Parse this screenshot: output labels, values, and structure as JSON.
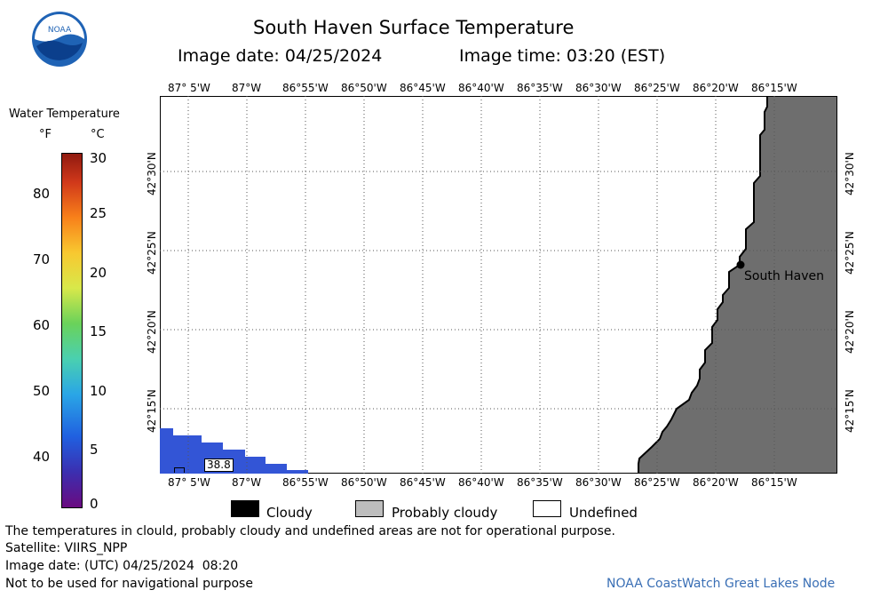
{
  "header": {
    "title": "South Haven Surface Temperature",
    "image_date": "Image date: 04/25/2024",
    "image_time": "Image time: 03:20 (EST)",
    "logo_text": "NOAA"
  },
  "colorbar": {
    "title": "Water Temperature",
    "unit_f": "°F",
    "unit_c": "°C",
    "f_ticks": [
      "80",
      "70",
      "60",
      "50",
      "40"
    ],
    "c_ticks": [
      "30",
      "25",
      "20",
      "15",
      "10",
      "5",
      "0"
    ],
    "range_c": [
      0,
      30
    ]
  },
  "map": {
    "lon_ticks": [
      "87° 5'W",
      "87°W",
      "86°55'W",
      "86°50'W",
      "86°45'W",
      "86°40'W",
      "86°35'W",
      "86°30'W",
      "86°25'W",
      "86°20'W",
      "86°15'W"
    ],
    "lat_ticks": [
      "42°30'N",
      "42°25'N",
      "42°20'N",
      "42°15'N"
    ],
    "place_label": "South Haven",
    "temperature_label": "38.8",
    "colors": {
      "land": "#6e6e6e",
      "water_cold": "#3355d6",
      "grid": "#555555"
    }
  },
  "legend": {
    "cloudy": "Cloudy",
    "probably_cloudy": "Probably cloudy",
    "undefined": "Undefined",
    "colors": {
      "cloudy": "#000000",
      "probably_cloudy": "#bdbdbd",
      "undefined": "#ffffff"
    }
  },
  "footer": {
    "disclaimer": "The temperatures in clould, probably cloudy and undefined areas are not for operational purpose.",
    "satellite": "Satellite: VIIRS_NPP",
    "utc_date": "Image date: (UTC) 04/25/2024  08:20",
    "nav_warning": "Not to be used for navigational purpose",
    "credit": "NOAA CoastWatch Great Lakes Node"
  }
}
